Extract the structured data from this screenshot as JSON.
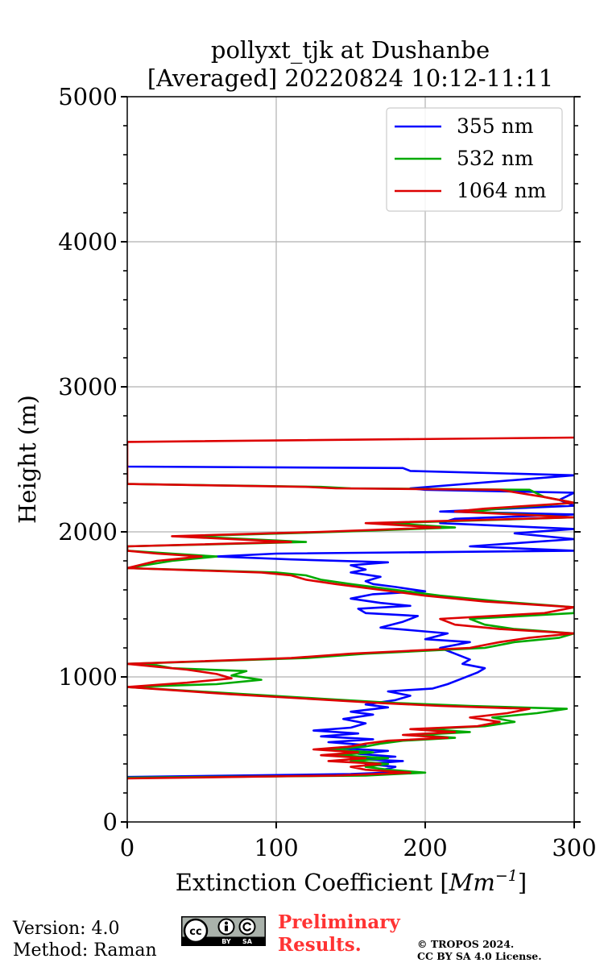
{
  "chart_data": {
    "type": "line",
    "title": "pollyxt_tjk at Dushanbe",
    "subtitle": "[Averaged] 20220824 10:12-11:11",
    "xlabel": "Extinction Coefficient [",
    "xlabel_unit": "Mm",
    "xlabel_exp": "−1",
    "xlabel_close": "]",
    "ylabel": "Height (m)",
    "xlim": [
      0,
      300
    ],
    "ylim": [
      0,
      5000
    ],
    "x_ticks": [
      0,
      100,
      200,
      300
    ],
    "x_tick_labels": [
      "0",
      "100",
      "200",
      "300"
    ],
    "y_ticks": [
      0,
      1000,
      2000,
      3000,
      4000,
      5000
    ],
    "y_tick_labels": [
      "0",
      "1000",
      "2000",
      "3000",
      "4000",
      "5000"
    ],
    "grid": true,
    "legend_position": "top-right",
    "series": [
      {
        "name": "355 nm",
        "color": "#0000ff",
        "points": [
          [
            0,
            310
          ],
          [
            150,
            330
          ],
          [
            185,
            345
          ],
          [
            172,
            360
          ],
          [
            180,
            380
          ],
          [
            160,
            400
          ],
          [
            185,
            420
          ],
          [
            150,
            435
          ],
          [
            180,
            450
          ],
          [
            155,
            470
          ],
          [
            175,
            490
          ],
          [
            140,
            510
          ],
          [
            160,
            530
          ],
          [
            135,
            550
          ],
          [
            165,
            570
          ],
          [
            130,
            590
          ],
          [
            155,
            610
          ],
          [
            125,
            630
          ],
          [
            150,
            650
          ],
          [
            160,
            680
          ],
          [
            145,
            710
          ],
          [
            165,
            740
          ],
          [
            150,
            760
          ],
          [
            175,
            790
          ],
          [
            160,
            810
          ],
          [
            180,
            840
          ],
          [
            190,
            870
          ],
          [
            175,
            900
          ],
          [
            205,
            920
          ],
          [
            215,
            950
          ],
          [
            225,
            990
          ],
          [
            235,
            1030
          ],
          [
            240,
            1060
          ],
          [
            225,
            1090
          ],
          [
            230,
            1120
          ],
          [
            220,
            1160
          ],
          [
            210,
            1200
          ],
          [
            230,
            1240
          ],
          [
            200,
            1260
          ],
          [
            215,
            1300
          ],
          [
            170,
            1340
          ],
          [
            185,
            1380
          ],
          [
            195,
            1420
          ],
          [
            160,
            1440
          ],
          [
            155,
            1470
          ],
          [
            190,
            1490
          ],
          [
            170,
            1510
          ],
          [
            150,
            1540
          ],
          [
            165,
            1570
          ],
          [
            200,
            1590
          ],
          [
            180,
            1620
          ],
          [
            165,
            1640
          ],
          [
            160,
            1660
          ],
          [
            170,
            1690
          ],
          [
            150,
            1720
          ],
          [
            160,
            1740
          ],
          [
            150,
            1770
          ],
          [
            175,
            1790
          ],
          [
            110,
            1810
          ],
          [
            60,
            1830
          ],
          [
            100,
            1850
          ],
          [
            300,
            1870
          ],
          [
            230,
            1900
          ],
          [
            300,
            1950
          ],
          [
            260,
            1990
          ],
          [
            300,
            2020
          ],
          [
            210,
            2060
          ],
          [
            220,
            2090
          ],
          [
            300,
            2120
          ],
          [
            210,
            2140
          ],
          [
            300,
            2180
          ],
          [
            290,
            2220
          ],
          [
            300,
            2270
          ],
          [
            200,
            2290
          ],
          [
            190,
            2300
          ],
          [
            300,
            2390
          ],
          [
            190,
            2420
          ],
          [
            185,
            2440
          ],
          [
            0,
            2450
          ],
          [
            0,
            2460
          ]
        ]
      },
      {
        "name": "532 nm",
        "color": "#00aa00",
        "points": [
          [
            0,
            305
          ],
          [
            160,
            320
          ],
          [
            200,
            340
          ],
          [
            175,
            360
          ],
          [
            160,
            380
          ],
          [
            175,
            400
          ],
          [
            150,
            420
          ],
          [
            175,
            440
          ],
          [
            140,
            460
          ],
          [
            165,
            480
          ],
          [
            135,
            500
          ],
          [
            160,
            520
          ],
          [
            170,
            540
          ],
          [
            185,
            560
          ],
          [
            220,
            580
          ],
          [
            195,
            600
          ],
          [
            230,
            620
          ],
          [
            200,
            640
          ],
          [
            240,
            660
          ],
          [
            260,
            690
          ],
          [
            245,
            720
          ],
          [
            275,
            750
          ],
          [
            295,
            780
          ],
          [
            230,
            800
          ],
          [
            180,
            820
          ],
          [
            130,
            850
          ],
          [
            80,
            880
          ],
          [
            0,
            930
          ],
          [
            60,
            950
          ],
          [
            90,
            980
          ],
          [
            70,
            1010
          ],
          [
            80,
            1040
          ],
          [
            30,
            1060
          ],
          [
            20,
            1080
          ],
          [
            0,
            1090
          ],
          [
            120,
            1130
          ],
          [
            160,
            1160
          ],
          [
            200,
            1180
          ],
          [
            240,
            1200
          ],
          [
            260,
            1240
          ],
          [
            290,
            1270
          ],
          [
            300,
            1300
          ],
          [
            260,
            1330
          ],
          [
            240,
            1360
          ],
          [
            230,
            1400
          ],
          [
            300,
            1440
          ],
          [
            300,
            1480
          ],
          [
            250,
            1520
          ],
          [
            210,
            1560
          ],
          [
            180,
            1600
          ],
          [
            150,
            1640
          ],
          [
            130,
            1670
          ],
          [
            120,
            1700
          ],
          [
            100,
            1720
          ],
          [
            0,
            1750
          ],
          [
            30,
            1800
          ],
          [
            60,
            1830
          ],
          [
            30,
            1850
          ],
          [
            0,
            1870
          ],
          [
            0,
            1900
          ],
          [
            120,
            1930
          ],
          [
            40,
            1970
          ],
          [
            140,
            2000
          ],
          [
            220,
            2030
          ],
          [
            175,
            2060
          ],
          [
            300,
            2100
          ],
          [
            230,
            2140
          ],
          [
            250,
            2160
          ],
          [
            300,
            2200
          ],
          [
            280,
            2240
          ],
          [
            270,
            2290
          ],
          [
            150,
            2300
          ],
          [
            130,
            2310
          ],
          [
            0,
            2330
          ]
        ]
      },
      {
        "name": "1064 nm",
        "color": "#dd0000",
        "points": [
          [
            0,
            300
          ],
          [
            140,
            320
          ],
          [
            190,
            340
          ],
          [
            160,
            360
          ],
          [
            150,
            380
          ],
          [
            170,
            400
          ],
          [
            135,
            420
          ],
          [
            160,
            440
          ],
          [
            130,
            460
          ],
          [
            155,
            480
          ],
          [
            125,
            500
          ],
          [
            150,
            520
          ],
          [
            160,
            540
          ],
          [
            175,
            560
          ],
          [
            215,
            580
          ],
          [
            185,
            600
          ],
          [
            220,
            620
          ],
          [
            190,
            640
          ],
          [
            235,
            660
          ],
          [
            250,
            690
          ],
          [
            230,
            720
          ],
          [
            255,
            750
          ],
          [
            270,
            780
          ],
          [
            210,
            800
          ],
          [
            170,
            820
          ],
          [
            120,
            850
          ],
          [
            70,
            880
          ],
          [
            0,
            930
          ],
          [
            40,
            960
          ],
          [
            70,
            990
          ],
          [
            60,
            1020
          ],
          [
            40,
            1050
          ],
          [
            20,
            1070
          ],
          [
            0,
            1090
          ],
          [
            110,
            1130
          ],
          [
            150,
            1160
          ],
          [
            190,
            1180
          ],
          [
            230,
            1200
          ],
          [
            250,
            1240
          ],
          [
            270,
            1270
          ],
          [
            300,
            1300
          ],
          [
            250,
            1330
          ],
          [
            220,
            1360
          ],
          [
            210,
            1400
          ],
          [
            280,
            1440
          ],
          [
            300,
            1480
          ],
          [
            240,
            1520
          ],
          [
            200,
            1560
          ],
          [
            170,
            1600
          ],
          [
            140,
            1640
          ],
          [
            120,
            1670
          ],
          [
            110,
            1700
          ],
          [
            90,
            1720
          ],
          [
            0,
            1750
          ],
          [
            20,
            1800
          ],
          [
            50,
            1830
          ],
          [
            20,
            1850
          ],
          [
            0,
            1870
          ],
          [
            0,
            1900
          ],
          [
            110,
            1930
          ],
          [
            30,
            1970
          ],
          [
            130,
            2000
          ],
          [
            210,
            2030
          ],
          [
            160,
            2060
          ],
          [
            300,
            2100
          ],
          [
            220,
            2140
          ],
          [
            240,
            2160
          ],
          [
            300,
            2200
          ],
          [
            280,
            2240
          ],
          [
            250,
            2290
          ],
          [
            140,
            2300
          ],
          [
            120,
            2310
          ],
          [
            0,
            2330
          ],
          [
            0,
            2620
          ],
          [
            300,
            2650
          ]
        ]
      }
    ]
  },
  "footer": {
    "version": "Version: 4.0",
    "method": "Method: Raman",
    "preliminary_line1": "Preliminary",
    "preliminary_line2": "Results.",
    "copyright_line1": "© TROPOS 2024.",
    "copyright_line2": "CC BY SA 4.0 License.",
    "cc_badge_label": "cc",
    "cc_by": "BY",
    "cc_sa": "SA"
  }
}
